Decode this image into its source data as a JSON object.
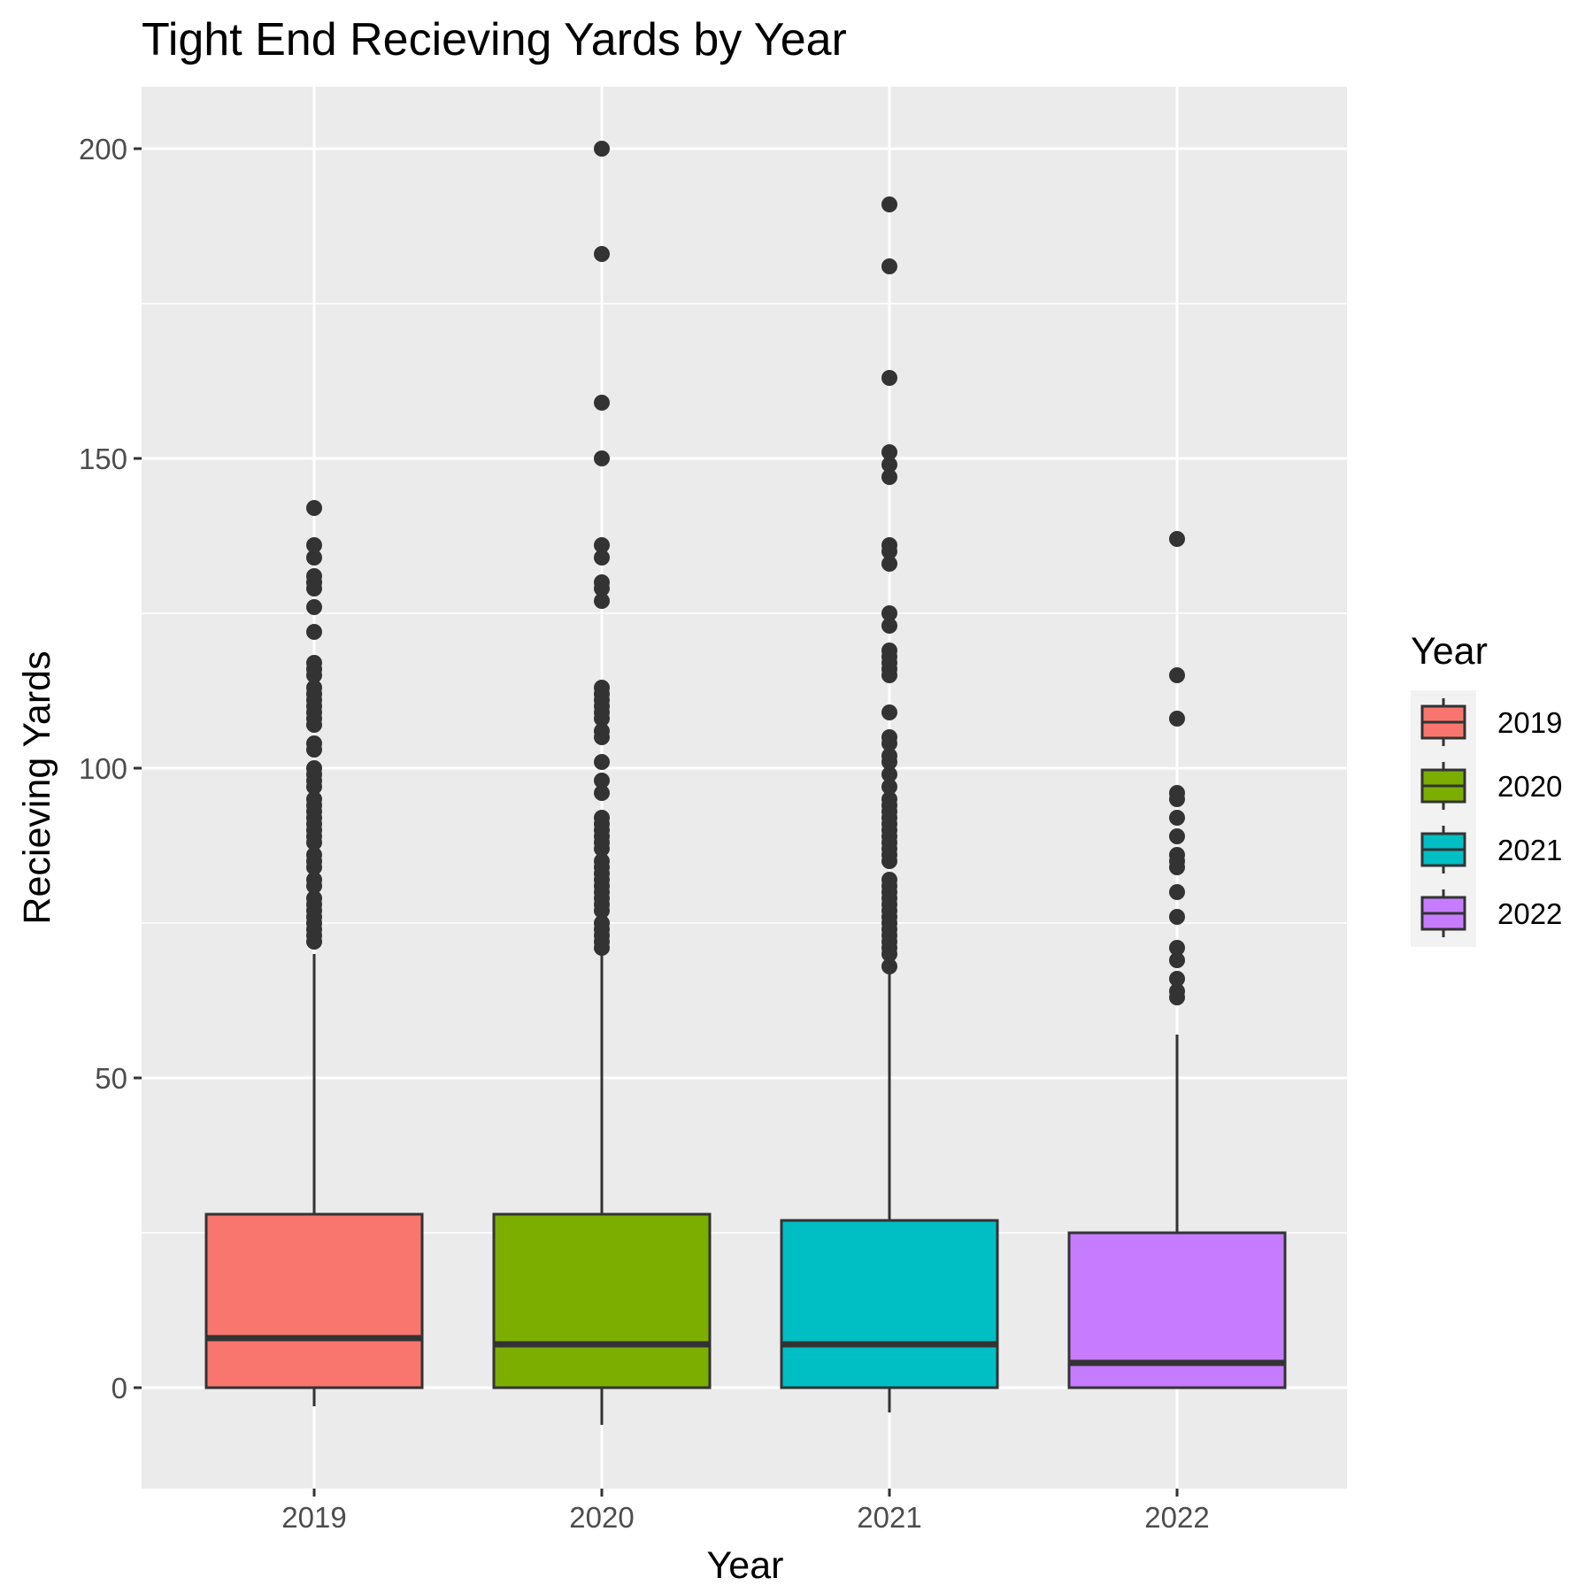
{
  "chart_data": {
    "type": "boxplot",
    "title": "Tight End Recieving Yards by Year",
    "xlabel": "Year",
    "ylabel": "Recieving Yards",
    "ylim": [
      -16,
      210
    ],
    "yticks": [
      0,
      50,
      100,
      150,
      200
    ],
    "grid": true,
    "legend": {
      "title": "Year",
      "position": "right"
    },
    "categories": [
      "2019",
      "2020",
      "2021",
      "2022"
    ],
    "colors": [
      "#F8766D",
      "#7CAE00",
      "#00BFC4",
      "#C77CFF"
    ],
    "boxes": [
      {
        "name": "2019",
        "whisker_low": -3,
        "q1": 0,
        "median": 8,
        "q3": 28,
        "whisker_high": 70,
        "outliers": [
          72,
          73,
          74,
          75,
          76,
          77,
          78,
          79,
          81,
          82,
          84,
          85,
          86,
          88,
          89,
          90,
          91,
          92,
          93,
          94,
          95,
          97,
          98,
          99,
          100,
          103,
          104,
          107,
          108,
          109,
          110,
          111,
          112,
          113,
          115,
          116,
          117,
          122,
          126,
          129,
          130,
          131,
          134,
          136,
          142
        ]
      },
      {
        "name": "2020",
        "whisker_low": -6,
        "q1": 0,
        "median": 7,
        "q3": 28,
        "whisker_high": 71,
        "outliers": [
          71,
          72,
          73,
          74,
          75,
          77,
          78,
          79,
          80,
          81,
          82,
          83,
          84,
          85,
          87,
          88,
          89,
          90,
          91,
          92,
          96,
          98,
          101,
          105,
          106,
          108,
          109,
          110,
          111,
          112,
          113,
          127,
          129,
          130,
          134,
          136,
          150,
          159,
          183,
          200
        ]
      },
      {
        "name": "2021",
        "whisker_low": -4,
        "q1": 0,
        "median": 7,
        "q3": 27,
        "whisker_high": 68,
        "outliers": [
          68,
          70,
          71,
          72,
          73,
          74,
          75,
          76,
          77,
          78,
          79,
          80,
          81,
          82,
          85,
          86,
          87,
          88,
          89,
          90,
          91,
          92,
          93,
          94,
          95,
          97,
          99,
          101,
          102,
          104,
          105,
          109,
          115,
          116,
          117,
          118,
          119,
          123,
          125,
          133,
          135,
          136,
          147,
          149,
          151,
          163,
          181,
          191
        ]
      },
      {
        "name": "2022",
        "whisker_low": 0,
        "q1": 0,
        "median": 4,
        "q3": 25,
        "whisker_high": 57,
        "outliers": [
          63,
          64,
          66,
          69,
          71,
          76,
          80,
          84,
          85,
          86,
          89,
          92,
          95,
          96,
          108,
          115,
          137
        ]
      }
    ]
  }
}
